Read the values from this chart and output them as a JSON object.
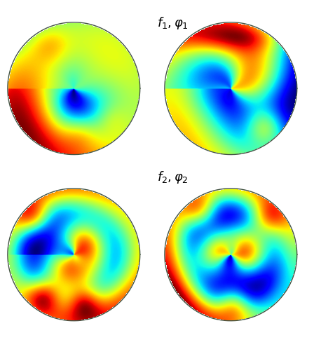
{
  "title_top": "$f_1, \\varphi_1$",
  "title_bottom": "$f_2, \\varphi_2$",
  "background_color": "#ffffff",
  "figsize": [
    4.48,
    4.89
  ],
  "dpi": 100,
  "colormap": "jet",
  "circle_edge_color": "#445544",
  "circle_linewidth": 1.0,
  "title_fontsize": 13
}
